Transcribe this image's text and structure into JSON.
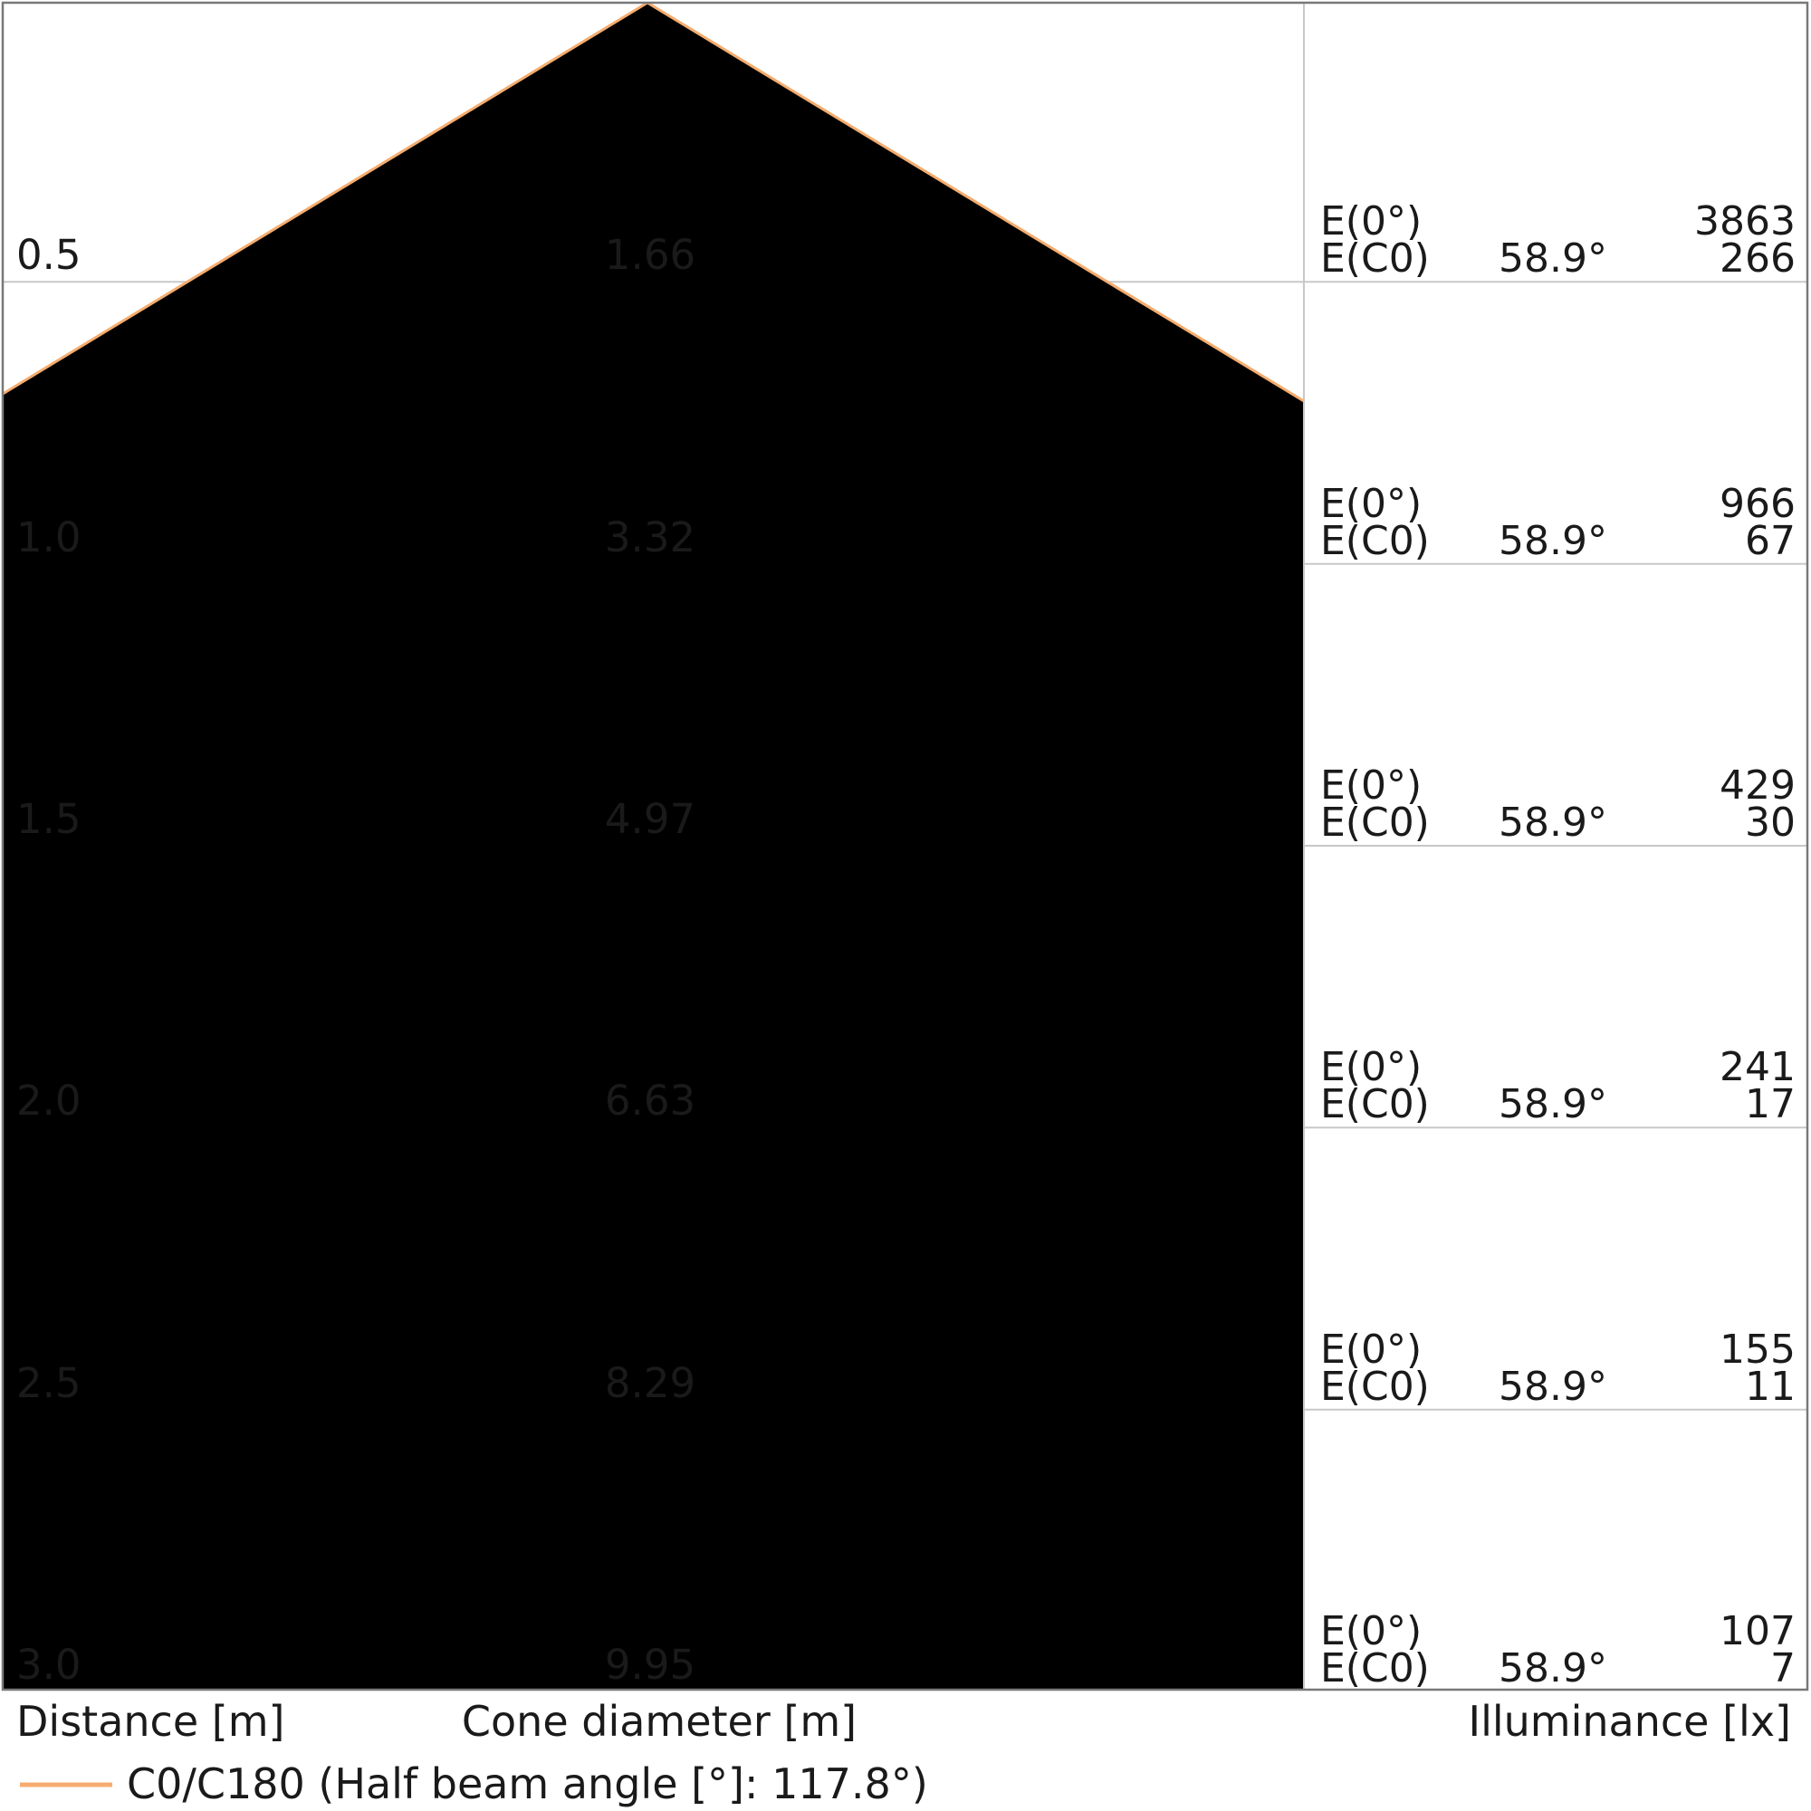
{
  "chart_data": {
    "type": "area",
    "subtype": "luminaire-light-cone-diagram",
    "distances_m": [
      0.5,
      1.0,
      1.5,
      2.0,
      2.5,
      3.0
    ],
    "cone_diameters_m": [
      1.66,
      3.32,
      4.97,
      6.63,
      8.29,
      9.95
    ],
    "illuminance_E0_lx": [
      3863,
      966,
      429,
      241,
      155,
      107
    ],
    "illuminance_EC0_lx": [
      266,
      67,
      30,
      17,
      11,
      7
    ],
    "EC0_angle_deg": 58.9,
    "half_beam_angle_deg": 117.8,
    "xlabel_left": "Distance [m]",
    "xlabel_center": "Cone diameter [m]",
    "xlabel_right": "Illuminance [lx]",
    "legend": [
      "C0/C180 (Half beam angle [°]: 117.8°)"
    ],
    "legend_position": "bottom-left",
    "grid": true,
    "axis_range_distance_m": [
      0,
      3.0
    ]
  },
  "rows": [
    {
      "distance": "0.5",
      "diameter": "1.66",
      "e0_label": "E(0°)",
      "e0": "3863",
      "ec0_label": "E(C0)",
      "angle": "58.9°",
      "ec0": "266"
    },
    {
      "distance": "1.0",
      "diameter": "3.32",
      "e0_label": "E(0°)",
      "e0": "966",
      "ec0_label": "E(C0)",
      "angle": "58.9°",
      "ec0": "67"
    },
    {
      "distance": "1.5",
      "diameter": "4.97",
      "e0_label": "E(0°)",
      "e0": "429",
      "ec0_label": "E(C0)",
      "angle": "58.9°",
      "ec0": "30"
    },
    {
      "distance": "2.0",
      "diameter": "6.63",
      "e0_label": "E(0°)",
      "e0": "241",
      "ec0_label": "E(C0)",
      "angle": "58.9°",
      "ec0": "17"
    },
    {
      "distance": "2.5",
      "diameter": "8.29",
      "e0_label": "E(0°)",
      "e0": "155",
      "ec0_label": "E(C0)",
      "angle": "58.9°",
      "ec0": "11"
    },
    {
      "distance": "3.0",
      "diameter": "9.95",
      "e0_label": "E(0°)",
      "e0": "107",
      "ec0_label": "E(C0)",
      "angle": "58.9°",
      "ec0": "7"
    }
  ],
  "footer": {
    "distance_axis_label": "Distance [m]",
    "cone_axis_label": "Cone diameter [m]",
    "illuminance_axis_label": "Illuminance [lx]",
    "legend_label": "C0/C180 (Half beam angle [°]: 117.8°)"
  },
  "colors": {
    "cone_fill_rgba": "rgba(251,246,211,0.8)",
    "cone_edge": "#f5ac6e",
    "grid_line": "#c8c8c8",
    "divider_line": "#c8c8c8",
    "outer_border": "#787878",
    "text": "#1a1a1a",
    "background": "#ffffff"
  }
}
